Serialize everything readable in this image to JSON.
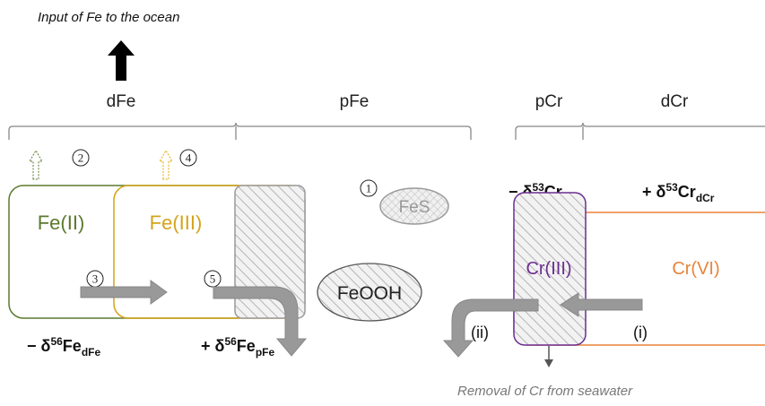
{
  "input_label": "Input of Fe to the ocean",
  "brackets": [
    "dFe",
    "pFe",
    "pCr",
    "dCr"
  ],
  "species": {
    "fe2": "Fe(II)",
    "fe3": "Fe(III)",
    "fes": "FeS",
    "feooh": "FeOOH",
    "cr3": "Cr(III)",
    "cr6": "Cr(VI)"
  },
  "markers": [
    "1",
    "2",
    "3",
    "4",
    "5"
  ],
  "isotope_labels": [
    {
      "prefix": "− δ",
      "mass": "56",
      "element": "Fe",
      "pool": "dFe"
    },
    {
      "prefix": "+ δ",
      "mass": "56",
      "element": "Fe",
      "pool": "pFe"
    },
    {
      "prefix": "− δ",
      "mass": "53",
      "element": "Cr",
      "pool": "pCr"
    },
    {
      "prefix": "+ δ",
      "mass": "53",
      "element": "Cr",
      "pool": "dCr"
    }
  ],
  "pathways": [
    "(i)",
    "(ii)"
  ],
  "removal_label": "Removal of Cr from seawater"
}
